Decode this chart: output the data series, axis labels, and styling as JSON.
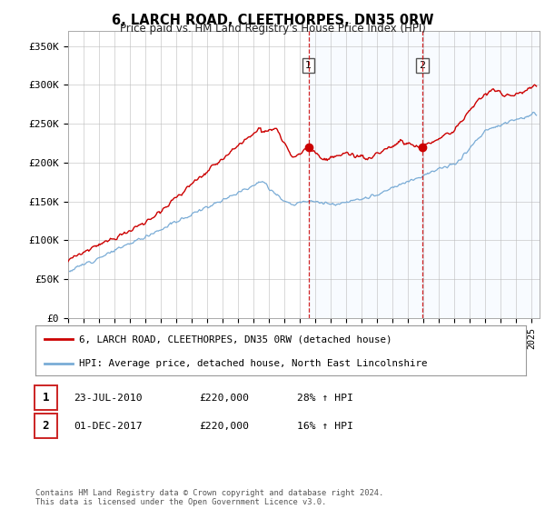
{
  "title": "6, LARCH ROAD, CLEETHORPES, DN35 0RW",
  "subtitle": "Price paid vs. HM Land Registry's House Price Index (HPI)",
  "legend_line1": "6, LARCH ROAD, CLEETHORPES, DN35 0RW (detached house)",
  "legend_line2": "HPI: Average price, detached house, North East Lincolnshire",
  "annotation1_label": "1",
  "annotation1_date": "23-JUL-2010",
  "annotation1_price": "£220,000",
  "annotation1_hpi": "28% ↑ HPI",
  "annotation2_label": "2",
  "annotation2_date": "01-DEC-2017",
  "annotation2_price": "£220,000",
  "annotation2_hpi": "16% ↑ HPI",
  "footer": "Contains HM Land Registry data © Crown copyright and database right 2024.\nThis data is licensed under the Open Government Licence v3.0.",
  "red_color": "#cc0000",
  "blue_color": "#7aacd6",
  "shade_color": "#ddeeff",
  "ylim": [
    0,
    370000
  ],
  "yticks": [
    0,
    50000,
    100000,
    150000,
    200000,
    250000,
    300000,
    350000
  ],
  "ytick_labels": [
    "£0",
    "£50K",
    "£100K",
    "£150K",
    "£200K",
    "£250K",
    "£300K",
    "£350K"
  ],
  "sale1_x": 2010.55,
  "sale1_y": 220000,
  "sale2_x": 2017.92,
  "sale2_y": 220000,
  "vline1_x": 2010.55,
  "vline2_x": 2017.92,
  "xmin": 1995,
  "xmax": 2025.5
}
